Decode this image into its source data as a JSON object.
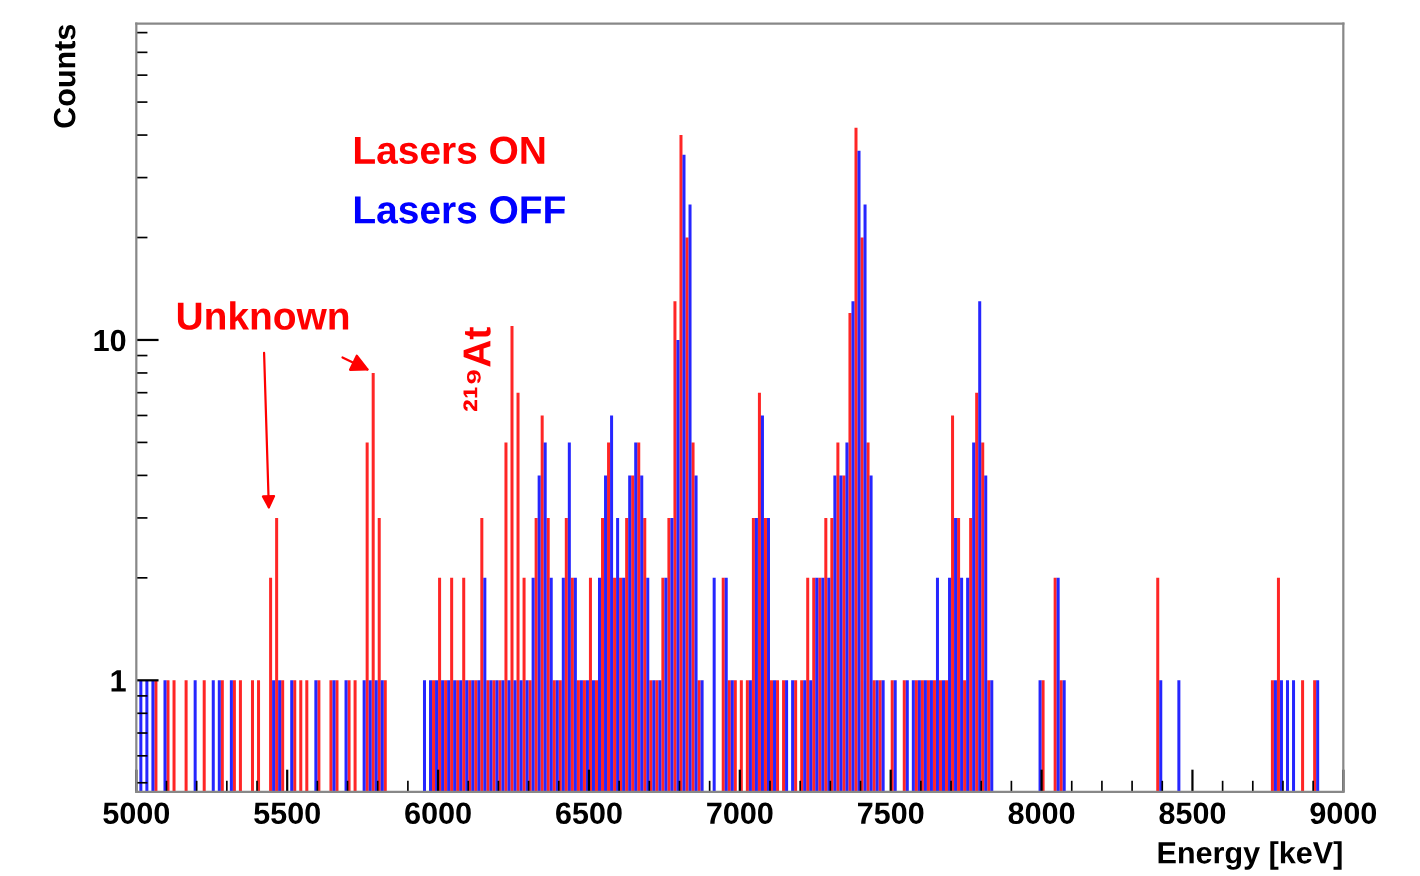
{
  "chart_data": {
    "type": "histogram",
    "xlabel": "Energy [keV]",
    "ylabel": "Counts",
    "log": "y",
    "grid": false,
    "legend": "top left",
    "bins": [
      5000,
      5020,
      5040,
      5060,
      5080,
      5100,
      5120,
      5140,
      5160,
      5180,
      5200,
      5220,
      5240,
      5260,
      5280,
      5300,
      5320,
      5340,
      5360,
      5380,
      5400,
      5420,
      5440,
      5460,
      5480,
      5500,
      5520,
      5540,
      5560,
      5580,
      5600,
      5620,
      5640,
      5660,
      5680,
      5700,
      5720,
      5740,
      5760,
      5780,
      5800,
      5820,
      5840,
      5860,
      5880,
      5900,
      5920,
      5940,
      5960,
      5980,
      6000,
      6020,
      6040,
      6060,
      6080,
      6100,
      6120,
      6140,
      6160,
      6180,
      6200,
      6220,
      6240,
      6260,
      6280,
      6300,
      6320,
      6340,
      6360,
      6380,
      6400,
      6420,
      6440,
      6460,
      6480,
      6500,
      6520,
      6540,
      6560,
      6580,
      6600,
      6620,
      6640,
      6660,
      6680,
      6700,
      6720,
      6740,
      6760,
      6780,
      6800,
      6820,
      6840,
      6860,
      6880,
      6900,
      6920,
      6940,
      6960,
      6980,
      7000,
      7020,
      7040,
      7060,
      7080,
      7100,
      7120,
      7140,
      7160,
      7180,
      7200,
      7220,
      7240,
      7260,
      7280,
      7300,
      7320,
      7340,
      7360,
      7380,
      7400,
      7420,
      7440,
      7460,
      7480,
      7500,
      7520,
      7540,
      7560,
      7580,
      7600,
      7620,
      7640,
      7660,
      7680,
      7700,
      7720,
      7740,
      7760,
      7780,
      7800,
      7820,
      7840,
      7860,
      7880,
      7900,
      7920,
      7940,
      7960,
      7980,
      8000,
      8020,
      8040,
      8060,
      8080,
      8100,
      8120,
      8140,
      8160,
      8180,
      8200,
      8220,
      8240,
      8260,
      8280,
      8300,
      8320,
      8340,
      8360,
      8380,
      8400,
      8420,
      8440,
      8460,
      8480,
      8500,
      8520,
      8540,
      8560,
      8580,
      8600,
      8620,
      8640,
      8660,
      8680,
      8700,
      8720,
      8740,
      8760,
      8780,
      8800,
      8820,
      8840,
      8860,
      8880,
      8900,
      8920,
      8940,
      8960,
      8980,
      9000
    ],
    "series": [
      {
        "name": "Lasers ON",
        "color": "#ff0000",
        "values": [
          null,
          null,
          null,
          1,
          null,
          1,
          1,
          null,
          1,
          null,
          null,
          1,
          null,
          null,
          1,
          null,
          1,
          1,
          null,
          1,
          1,
          null,
          2,
          3,
          1,
          null,
          1,
          1,
          1,
          null,
          1,
          null,
          1,
          1,
          null,
          1,
          1,
          null,
          5,
          8,
          3,
          1,
          null,
          null,
          null,
          null,
          null,
          null,
          null,
          1,
          2,
          1,
          2,
          1,
          2,
          1,
          1,
          3,
          1,
          1,
          1,
          5,
          11,
          7,
          2,
          1,
          3,
          6,
          3,
          1,
          1,
          3,
          2,
          1,
          1,
          2,
          1,
          3,
          5,
          2,
          2,
          3,
          4,
          5,
          3,
          1,
          1,
          2,
          3,
          13,
          40,
          20,
          5,
          1,
          null,
          null,
          null,
          2,
          1,
          1,
          1,
          1,
          3,
          7,
          3,
          1,
          1,
          1,
          null,
          1,
          1,
          2,
          2,
          2,
          3,
          3,
          5,
          4,
          12,
          42,
          20,
          5,
          1,
          1,
          null,
          1,
          null,
          1,
          null,
          1,
          1,
          1,
          1,
          1,
          1,
          6,
          3,
          1,
          3,
          7,
          5,
          1,
          null,
          null,
          null,
          null,
          null,
          null,
          null,
          null,
          1,
          null,
          2,
          1,
          null,
          null,
          null,
          null,
          null,
          null,
          null,
          null,
          null,
          null,
          null,
          null,
          null,
          null,
          null,
          2,
          null,
          null,
          null,
          null,
          null,
          null,
          null,
          null,
          null,
          null,
          null,
          null,
          null,
          null,
          null,
          null,
          null,
          null,
          1,
          2,
          null,
          null,
          null,
          1,
          null,
          1,
          null,
          null,
          null,
          null
        ]
      },
      {
        "name": "Lasers OFF",
        "color": "#0000ff",
        "values": [
          1,
          1,
          1,
          null,
          1,
          null,
          null,
          null,
          null,
          1,
          null,
          null,
          1,
          1,
          null,
          1,
          null,
          null,
          null,
          null,
          null,
          null,
          1,
          1,
          null,
          1,
          null,
          null,
          null,
          1,
          null,
          null,
          1,
          null,
          1,
          null,
          null,
          1,
          1,
          1,
          1,
          null,
          null,
          null,
          null,
          null,
          null,
          1,
          1,
          1,
          1,
          1,
          1,
          1,
          1,
          1,
          1,
          2,
          1,
          1,
          1,
          1,
          1,
          1,
          1,
          2,
          4,
          5,
          2,
          1,
          2,
          5,
          2,
          1,
          1,
          1,
          2,
          4,
          6,
          3,
          2,
          4,
          5,
          4,
          2,
          1,
          1,
          2,
          3,
          10,
          35,
          25,
          4,
          1,
          null,
          2,
          null,
          2,
          1,
          null,
          null,
          1,
          3,
          6,
          3,
          1,
          null,
          1,
          1,
          null,
          1,
          1,
          2,
          2,
          2,
          4,
          4,
          5,
          13,
          36,
          25,
          4,
          1,
          1,
          null,
          1,
          null,
          1,
          1,
          1,
          1,
          1,
          2,
          1,
          2,
          3,
          2,
          2,
          5,
          13,
          4,
          1,
          null,
          null,
          null,
          null,
          null,
          null,
          null,
          1,
          null,
          null,
          2,
          1,
          null,
          null,
          null,
          null,
          null,
          null,
          null,
          null,
          null,
          null,
          null,
          null,
          null,
          null,
          null,
          1,
          null,
          null,
          1,
          null,
          null,
          null,
          null,
          null,
          null,
          null,
          null,
          null,
          null,
          null,
          null,
          null,
          null,
          null,
          1,
          1,
          1,
          1,
          null,
          null,
          null,
          1,
          null,
          null,
          null,
          null
        ]
      }
    ],
    "xlim": [
      5000,
      9000
    ],
    "xticks": [
      5000,
      5500,
      6000,
      6500,
      7000,
      7500,
      8000,
      8500,
      9000
    ],
    "ylim": [
      0.47,
      85
    ],
    "yticks": [
      1,
      10
    ],
    "annotations": [
      {
        "text": "Unknown",
        "x": 5790,
        "y": 8
      },
      "²¹⁹At"
    ]
  }
}
